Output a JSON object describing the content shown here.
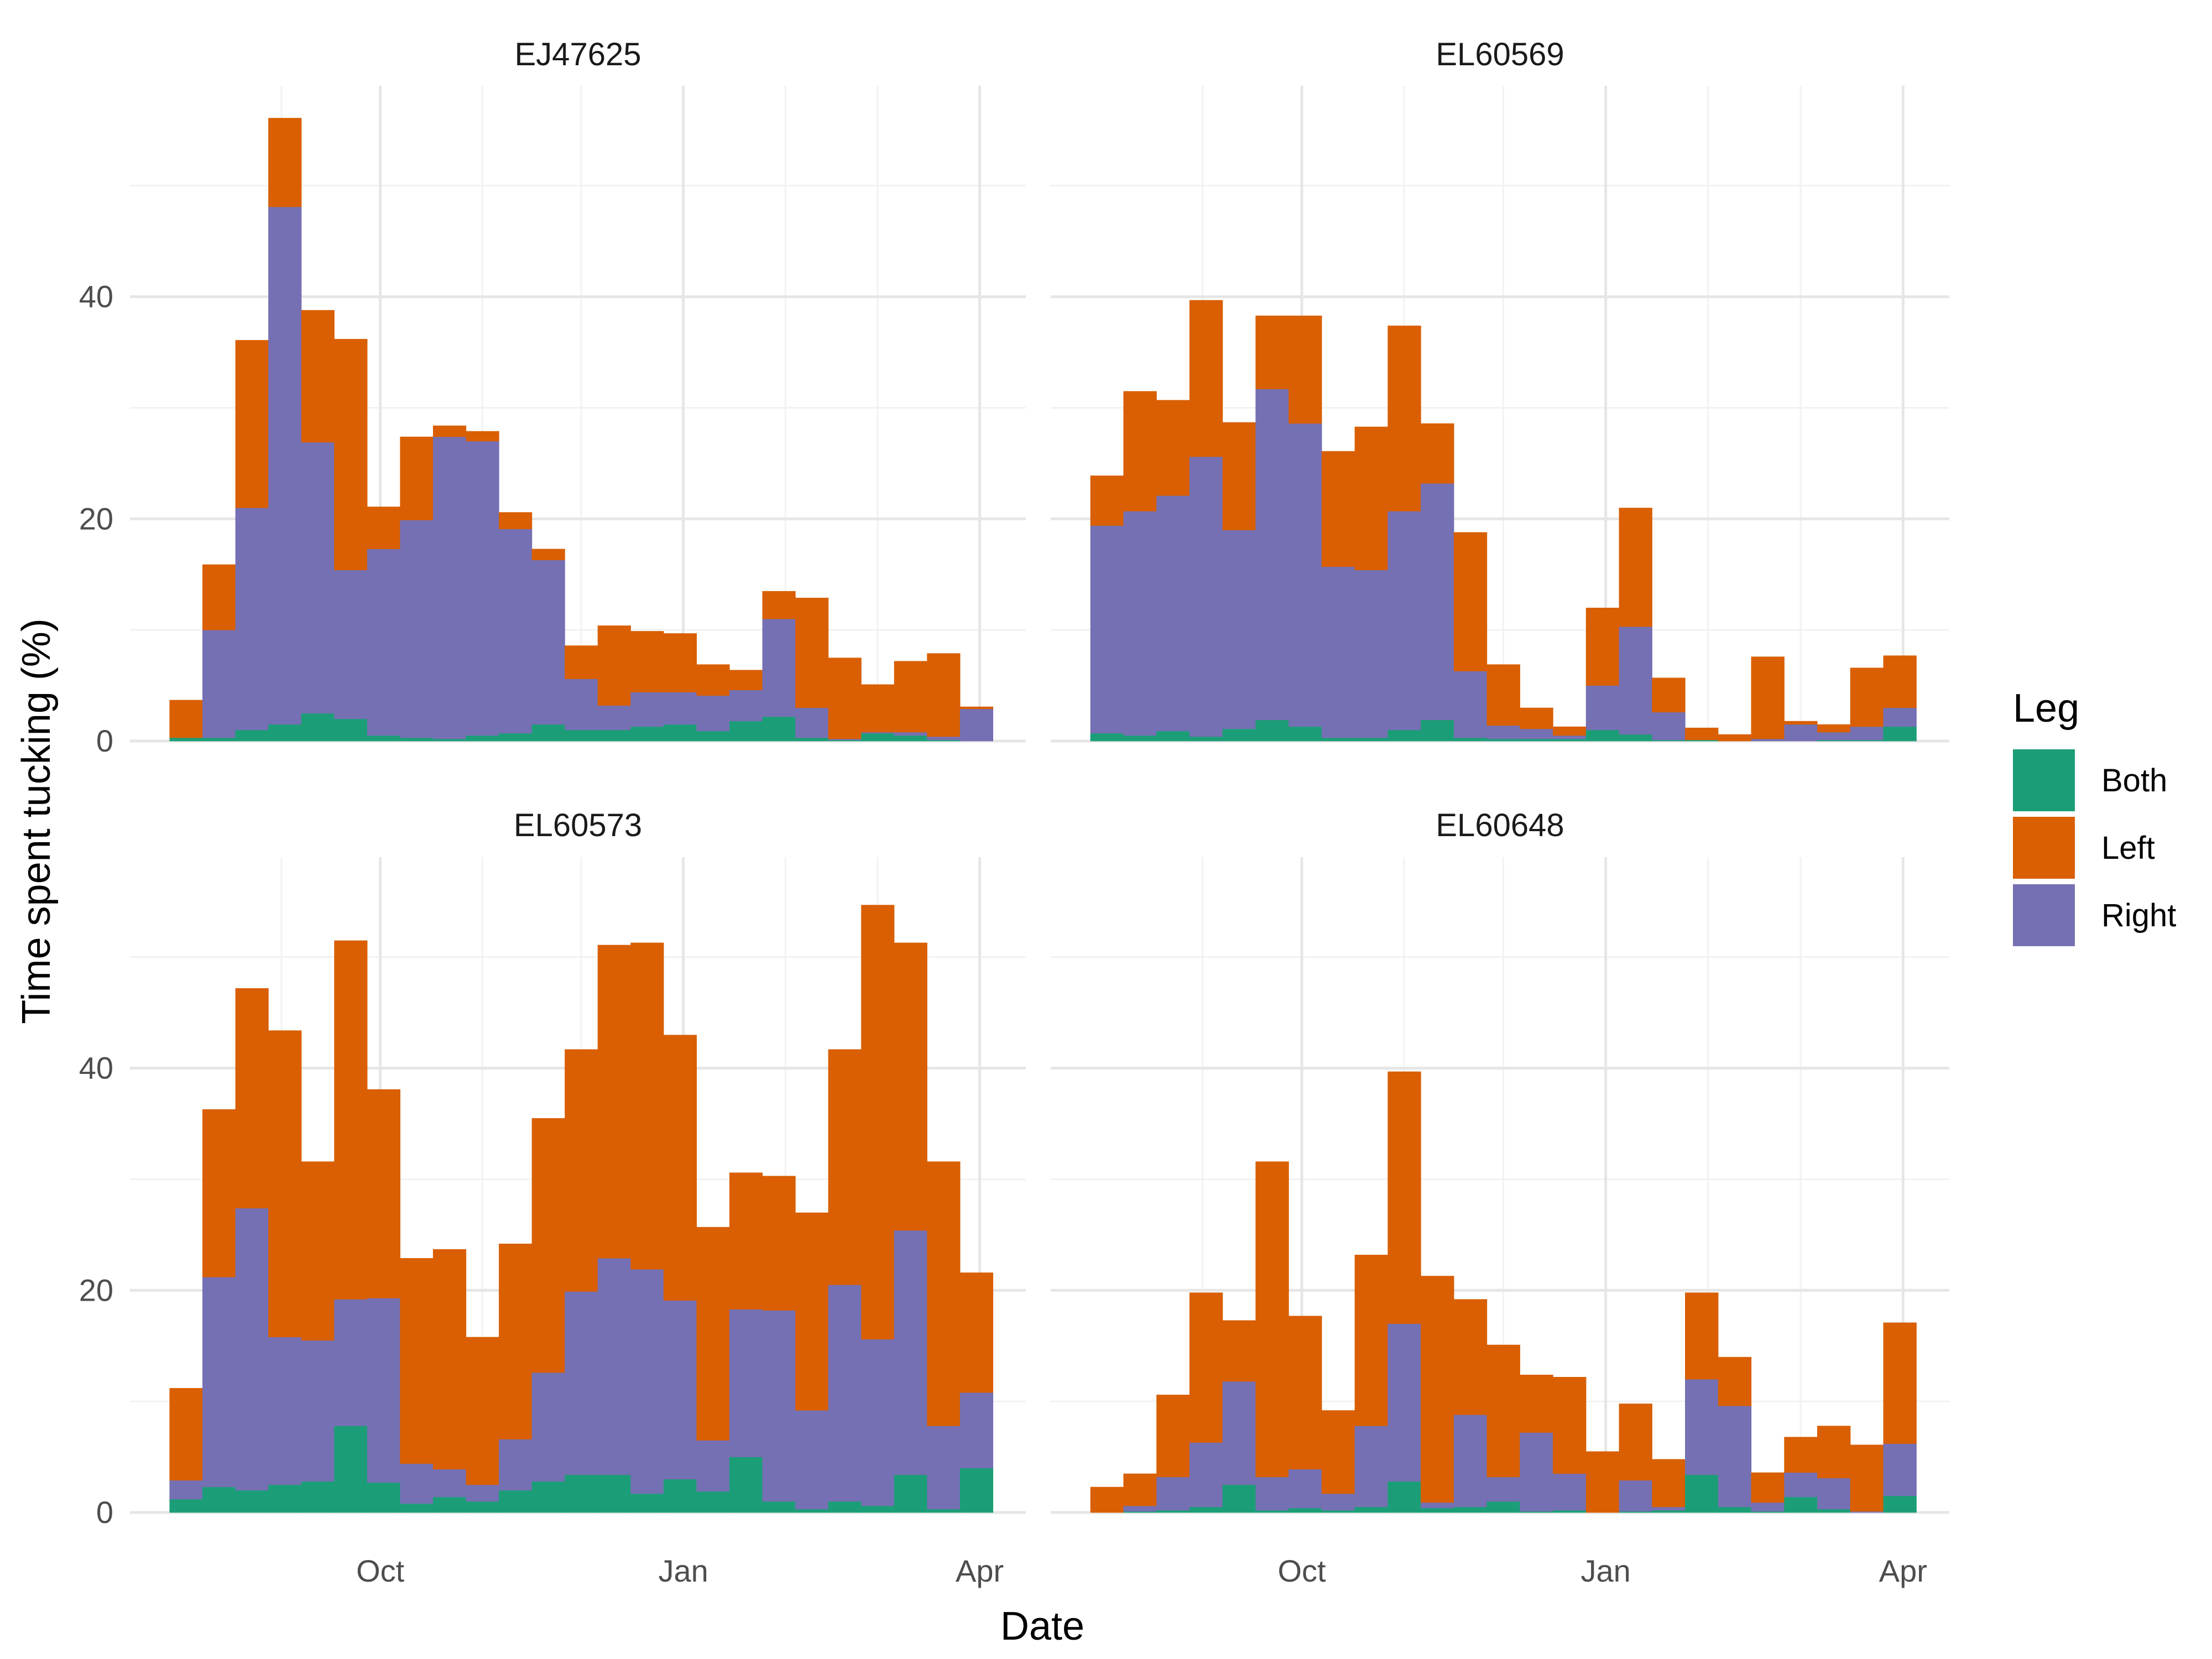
{
  "chart_data": {
    "type": "bar",
    "stacked": true,
    "xlabel": "Date",
    "ylabel": "Time spent tucking (%)",
    "x_tick_labels": [
      "Oct",
      "Jan",
      "Apr"
    ],
    "y_tick_labels": [
      "0",
      "20",
      "40"
    ],
    "ylim": [
      0,
      59
    ],
    "grid": true,
    "legend": {
      "title": "Leg",
      "position": "right",
      "items": [
        {
          "name": "Both",
          "color": "#1B9E77"
        },
        {
          "name": "Left",
          "color": "#D95F02"
        },
        {
          "name": "Right",
          "color": "#7570B3"
        }
      ]
    },
    "x": [
      "2020-08-03",
      "2020-08-13",
      "2020-08-23",
      "2020-09-02",
      "2020-09-12",
      "2020-09-22",
      "2020-10-02",
      "2020-10-12",
      "2020-10-22",
      "2020-11-01",
      "2020-11-11",
      "2020-11-21",
      "2020-12-01",
      "2020-12-11",
      "2020-12-21",
      "2020-12-31",
      "2021-01-10",
      "2021-01-20",
      "2021-01-30",
      "2021-02-09",
      "2021-02-19",
      "2021-03-01",
      "2021-03-11",
      "2021-03-21",
      "2021-03-31"
    ],
    "panels": [
      {
        "title": "EJ47625",
        "both": [
          0.3,
          0.3,
          1.0,
          1.5,
          2.5,
          2.0,
          0.5,
          0.3,
          0.2,
          0.5,
          0.7,
          1.5,
          1.0,
          1.0,
          1.3,
          1.5,
          0.9,
          1.8,
          2.2,
          0.3,
          0.1,
          0.7,
          0.5,
          0.1,
          null
        ],
        "right": [
          0.0,
          9.7,
          20.0,
          46.6,
          24.4,
          13.4,
          16.8,
          19.6,
          27.2,
          26.5,
          18.4,
          14.8,
          4.6,
          2.2,
          3.1,
          2.9,
          3.2,
          2.8,
          8.8,
          2.7,
          0.1,
          0.1,
          0.3,
          0.3,
          2.9
        ],
        "left": [
          3.4,
          5.9,
          15.1,
          8.0,
          11.9,
          20.8,
          3.8,
          7.5,
          1.0,
          0.9,
          1.5,
          1.0,
          3.0,
          7.2,
          5.5,
          5.3,
          2.8,
          1.8,
          2.5,
          9.9,
          7.3,
          4.3,
          6.4,
          7.5,
          0.2
        ]
      },
      {
        "title": "EL60569",
        "both": [
          0.7,
          0.5,
          0.9,
          0.4,
          1.1,
          1.9,
          1.3,
          0.3,
          0.3,
          1.0,
          1.9,
          0.3,
          0.2,
          0.2,
          0.2,
          1.0,
          0.6,
          0.1,
          0.1,
          0.0,
          0.0,
          0.0,
          0.1,
          0.1,
          1.3
        ],
        "right": [
          18.7,
          20.2,
          21.2,
          25.2,
          17.9,
          29.8,
          27.3,
          15.4,
          15.1,
          19.7,
          21.3,
          6.0,
          1.2,
          0.9,
          0.3,
          4.0,
          9.7,
          2.5,
          0.0,
          0.0,
          0.2,
          1.5,
          0.7,
          1.2,
          1.7
        ],
        "left": [
          4.5,
          10.8,
          8.6,
          14.1,
          9.7,
          6.6,
          9.7,
          10.4,
          12.9,
          16.7,
          5.4,
          12.5,
          5.5,
          1.9,
          0.8,
          7.0,
          10.7,
          3.1,
          1.1,
          0.6,
          7.4,
          0.3,
          0.7,
          5.3,
          4.7
        ]
      },
      {
        "title": "EL60573",
        "both": [
          1.2,
          2.3,
          2.0,
          2.5,
          2.8,
          7.8,
          2.7,
          0.8,
          1.4,
          1.0,
          2.0,
          2.8,
          3.4,
          3.4,
          1.7,
          3.0,
          1.9,
          5.0,
          1.0,
          0.3,
          1.0,
          0.6,
          3.4,
          0.3,
          4.0
        ],
        "right": [
          1.7,
          18.9,
          25.4,
          13.3,
          12.7,
          11.4,
          16.6,
          3.6,
          2.5,
          1.5,
          4.6,
          9.8,
          16.5,
          19.5,
          20.2,
          16.1,
          4.6,
          13.3,
          17.2,
          8.9,
          19.5,
          15.0,
          22.0,
          7.5,
          6.8
        ],
        "left": [
          8.3,
          15.1,
          19.8,
          27.6,
          16.1,
          32.3,
          18.8,
          18.5,
          19.8,
          13.3,
          17.6,
          22.9,
          21.8,
          28.2,
          29.4,
          23.9,
          19.2,
          12.3,
          12.1,
          17.8,
          21.2,
          39.1,
          25.9,
          23.8,
          10.8
        ]
      },
      {
        "title": "EL60648",
        "both": [
          null,
          0.1,
          0.2,
          0.5,
          2.5,
          0.2,
          0.4,
          0.2,
          0.5,
          2.8,
          0.4,
          0.5,
          1.0,
          0.1,
          0.2,
          null,
          0.1,
          0.2,
          3.4,
          0.5,
          0.1,
          1.4,
          0.3,
          0.0,
          1.5
        ],
        "right": [
          null,
          0.5,
          3.0,
          5.8,
          9.3,
          3.0,
          3.5,
          1.5,
          7.3,
          14.2,
          0.5,
          8.3,
          2.2,
          7.1,
          3.3,
          null,
          2.8,
          0.3,
          8.6,
          9.1,
          0.8,
          2.2,
          2.8,
          0.1,
          4.7
        ],
        "left": [
          2.3,
          2.9,
          7.4,
          13.5,
          5.5,
          28.4,
          13.8,
          7.5,
          15.4,
          22.7,
          20.4,
          10.4,
          11.9,
          5.2,
          8.7,
          5.5,
          6.9,
          4.3,
          7.8,
          4.4,
          2.7,
          3.2,
          4.7,
          6.0,
          10.9
        ]
      }
    ]
  }
}
